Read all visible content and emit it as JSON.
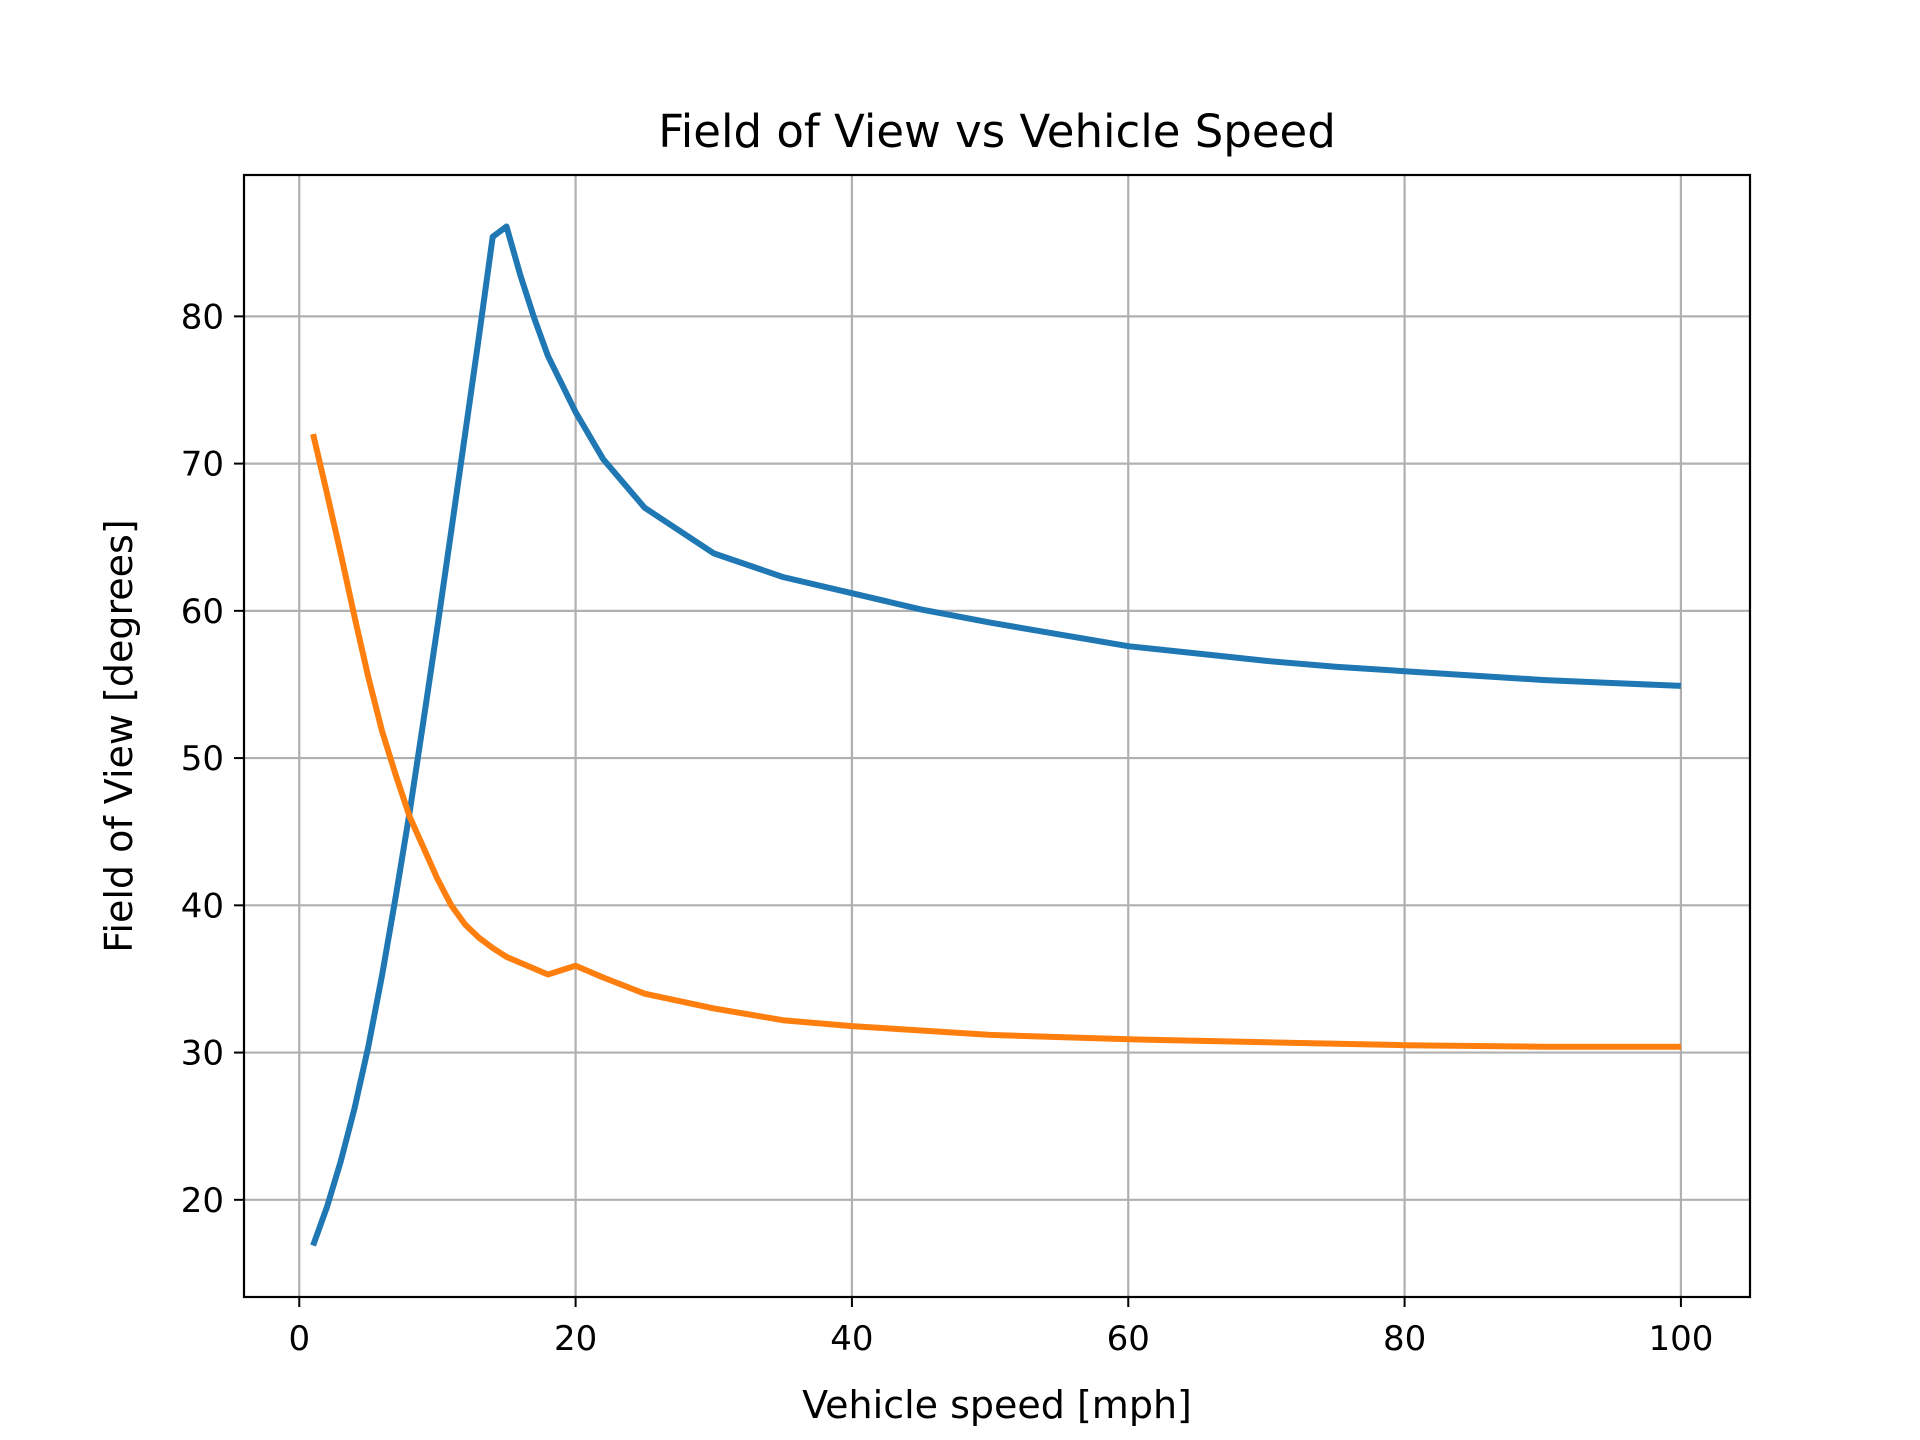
{
  "chart_data": {
    "type": "line",
    "title": "Field of View vs Vehicle Speed",
    "xlabel": "Vehicle speed [mph]",
    "ylabel": "Field of View [degrees]",
    "xlim": [
      -4,
      105
    ],
    "ylim": [
      13.4,
      89.6
    ],
    "xticks": [
      0,
      20,
      40,
      60,
      80,
      100
    ],
    "yticks": [
      20,
      30,
      40,
      50,
      60,
      70,
      80
    ],
    "grid": true,
    "series": [
      {
        "color": "#1f77b4",
        "x": [
          1,
          2,
          3,
          4,
          5,
          6,
          7,
          8,
          9,
          10,
          11,
          12,
          13,
          14,
          15,
          16,
          17,
          18,
          20,
          22,
          25,
          30,
          35,
          40,
          45,
          50,
          55,
          60,
          65,
          70,
          75,
          80,
          85,
          90,
          95,
          100
        ],
        "y": [
          16.9,
          19.5,
          22.6,
          26.2,
          30.4,
          35.3,
          40.7,
          46.4,
          52.6,
          58.9,
          65.4,
          72.0,
          78.6,
          85.4,
          86.1,
          82.8,
          79.9,
          77.3,
          73.5,
          70.3,
          67.0,
          63.9,
          62.3,
          61.2,
          60.1,
          59.2,
          58.4,
          57.6,
          57.1,
          56.6,
          56.2,
          55.9,
          55.6,
          55.3,
          55.1,
          54.9
        ]
      },
      {
        "color": "#ff7f0e",
        "x": [
          1,
          2,
          3,
          4,
          5,
          6,
          7,
          8,
          9,
          10,
          11,
          12,
          13,
          14,
          15,
          16,
          18,
          20,
          22,
          25,
          30,
          35,
          40,
          45,
          50,
          60,
          70,
          80,
          90,
          100
        ],
        "y": [
          72.0,
          68.0,
          63.9,
          59.6,
          55.5,
          51.8,
          48.8,
          46.0,
          43.9,
          41.8,
          40.0,
          38.7,
          37.8,
          37.1,
          36.5,
          36.1,
          35.3,
          35.9,
          35.1,
          34.0,
          33.0,
          32.2,
          31.8,
          31.5,
          31.2,
          30.9,
          30.7,
          30.5,
          30.4,
          30.4
        ]
      }
    ]
  }
}
